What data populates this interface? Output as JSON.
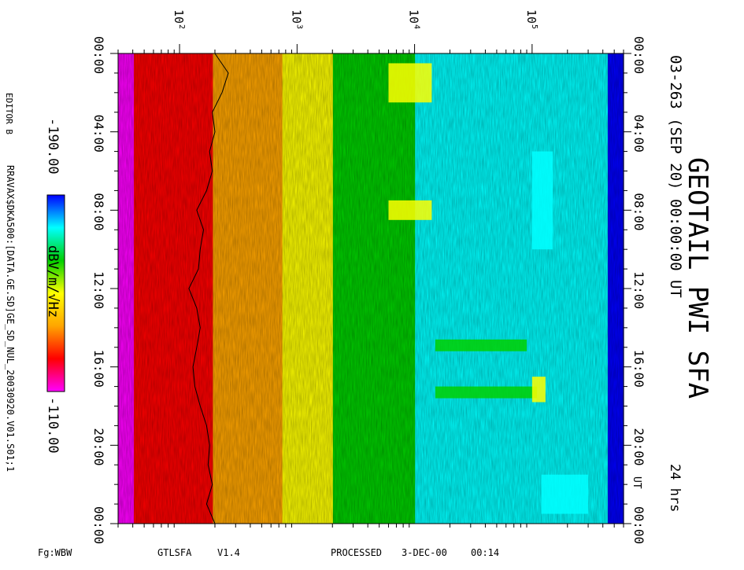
{
  "chart_data": {
    "type": "heatmap",
    "title": "GEOTAIL PWI SFA",
    "subtitle": "03-263 (SEP 20) 00:00:00 UT",
    "duration_label": "24 hrs",
    "orientation": "rotated-90",
    "freq_axis": {
      "scale": "log",
      "range": [
        30,
        600000
      ],
      "ticks": [
        {
          "label": "10",
          "exp": "2",
          "value": 100
        },
        {
          "label": "10",
          "exp": "3",
          "value": 1000
        },
        {
          "label": "10",
          "exp": "4",
          "value": 10000
        },
        {
          "label": "10",
          "exp": "5",
          "value": 100000
        }
      ]
    },
    "time_axis": {
      "range_hours": [
        0,
        24
      ],
      "ticks": [
        {
          "label": "00:00",
          "hour": 0
        },
        {
          "label": "04:00",
          "hour": 4
        },
        {
          "label": "08:00",
          "hour": 8
        },
        {
          "label": "12:00",
          "hour": 12
        },
        {
          "label": "16:00",
          "hour": 16
        },
        {
          "label": "20:00",
          "hour": 20
        },
        {
          "label": "00:00",
          "hour": 24
        }
      ],
      "right_extra_labels": [
        {
          "label": "00:00",
          "hour": 0
        },
        {
          "label": "04:00",
          "hour": 4
        },
        {
          "label": "08:00",
          "hour": 8
        },
        {
          "label": "12:00",
          "hour": 12
        },
        {
          "label": "16:00",
          "hour": 16
        },
        {
          "label": "20:00",
          "hour": 20
        },
        {
          "label": "00:00",
          "hour": 24
        }
      ],
      "ut_label": "UT"
    },
    "colorbar": {
      "min_label": "-190.00",
      "max_label": "-110.00",
      "unit_label": "dBV/m/√Hz",
      "min": -190,
      "max": -110,
      "colors": [
        "#ff00ff",
        "#ff0000",
        "#ffa500",
        "#ffff00",
        "#00d000",
        "#00ffff",
        "#0000ff"
      ]
    },
    "band_profile": [
      {
        "freq": 30,
        "level": 0.95
      },
      {
        "freq": 100,
        "level": 0.82
      },
      {
        "freq": 300,
        "level": 0.7
      },
      {
        "freq": 1000,
        "level": 0.55
      },
      {
        "freq": 2000,
        "level": 0.45
      },
      {
        "freq": 2100,
        "level": 0.28
      },
      {
        "freq": 10000,
        "level": 0.26
      },
      {
        "freq": 15000,
        "level": 0.12
      },
      {
        "freq": 100000,
        "level": 0.1
      },
      {
        "freq": 600000,
        "level": 0.08
      }
    ],
    "events": [
      {
        "hour_start": 0.5,
        "hour_end": 2.5,
        "freq_lo": 6000,
        "freq_hi": 14000,
        "level": 0.55
      },
      {
        "hour_start": 7.5,
        "hour_end": 8.5,
        "freq_lo": 6000,
        "freq_hi": 14000,
        "level": 0.5
      },
      {
        "hour_start": 14.6,
        "hour_end": 15.2,
        "freq_lo": 15000,
        "freq_hi": 90000,
        "level": 0.28
      },
      {
        "hour_start": 17.0,
        "hour_end": 17.6,
        "freq_lo": 15000,
        "freq_hi": 110000,
        "level": 0.3
      },
      {
        "hour_start": 16.5,
        "hour_end": 17.8,
        "freq_lo": 100000,
        "freq_hi": 130000,
        "level": 0.5
      },
      {
        "hour_start": 5.0,
        "hour_end": 10.0,
        "freq_lo": 100000,
        "freq_hi": 150000,
        "level": 0.25
      },
      {
        "hour_start": 21.5,
        "hour_end": 23.5,
        "freq_lo": 120000,
        "freq_hi": 300000,
        "level": 0.25
      }
    ],
    "trace": {
      "color": "#000000",
      "points": [
        {
          "hour": 0.0,
          "freq": 200
        },
        {
          "hour": 1.0,
          "freq": 260
        },
        {
          "hour": 2.0,
          "freq": 230
        },
        {
          "hour": 3.0,
          "freq": 190
        },
        {
          "hour": 4.0,
          "freq": 200
        },
        {
          "hour": 5.0,
          "freq": 180
        },
        {
          "hour": 6.0,
          "freq": 190
        },
        {
          "hour": 7.0,
          "freq": 170
        },
        {
          "hour": 8.0,
          "freq": 140
        },
        {
          "hour": 9.0,
          "freq": 160
        },
        {
          "hour": 10.0,
          "freq": 150
        },
        {
          "hour": 11.0,
          "freq": 145
        },
        {
          "hour": 12.0,
          "freq": 120
        },
        {
          "hour": 13.0,
          "freq": 140
        },
        {
          "hour": 14.0,
          "freq": 150
        },
        {
          "hour": 15.0,
          "freq": 140
        },
        {
          "hour": 16.0,
          "freq": 130
        },
        {
          "hour": 17.0,
          "freq": 135
        },
        {
          "hour": 18.0,
          "freq": 150
        },
        {
          "hour": 19.0,
          "freq": 170
        },
        {
          "hour": 20.0,
          "freq": 180
        },
        {
          "hour": 21.0,
          "freq": 175
        },
        {
          "hour": 22.0,
          "freq": 190
        },
        {
          "hour": 23.0,
          "freq": 170
        },
        {
          "hour": 24.0,
          "freq": 200
        }
      ]
    }
  },
  "footer": {
    "left": "Fg:WBW",
    "program": "GTLSFA",
    "version": "V1.4",
    "processed": "PROCESSED",
    "date": "3-DEC-00",
    "time": "00:14"
  },
  "side": {
    "editor": "EDITOR B",
    "source": "RRAVAX$DKA500:[DATA.GE.SD]GE_SD_NUL_20030920.V01.S01;1"
  }
}
